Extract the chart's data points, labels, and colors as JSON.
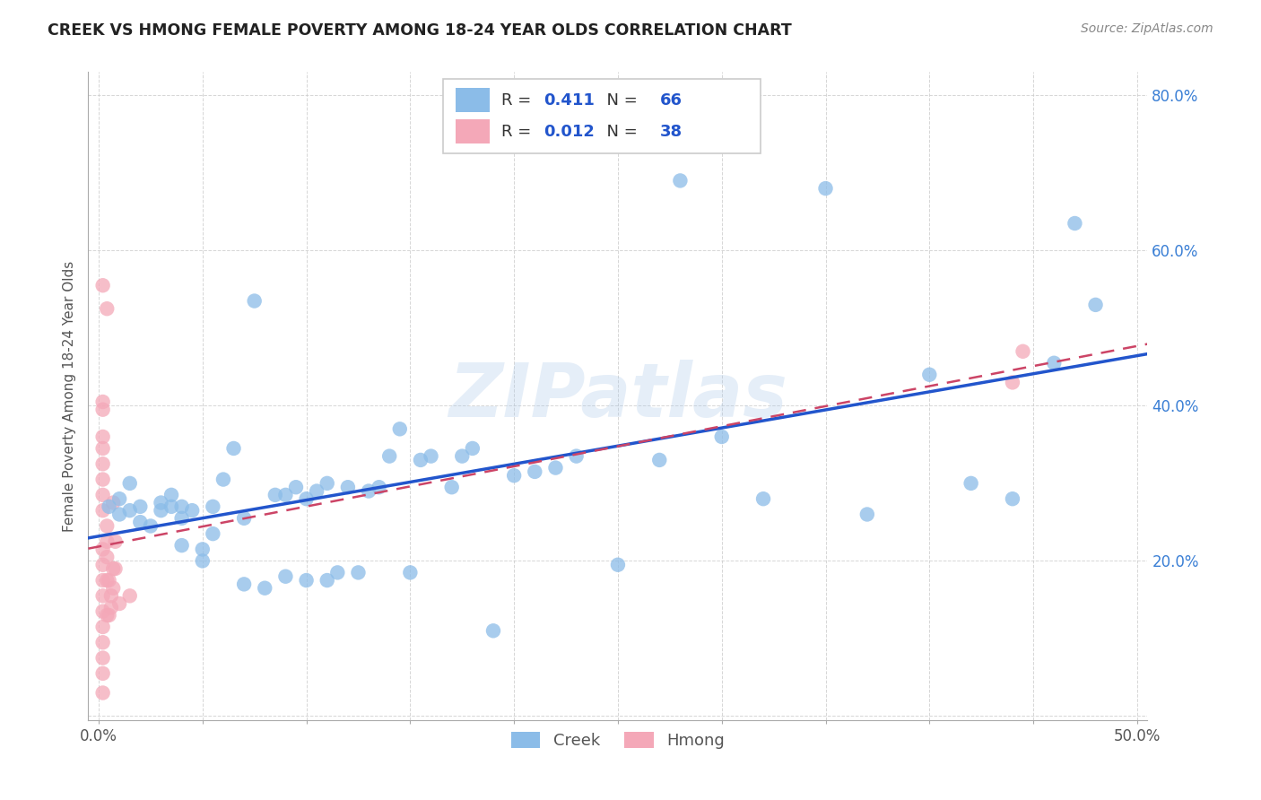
{
  "title": "CREEK VS HMONG FEMALE POVERTY AMONG 18-24 YEAR OLDS CORRELATION CHART",
  "source": "Source: ZipAtlas.com",
  "ylabel": "Female Poverty Among 18-24 Year Olds",
  "xlim": [
    -0.005,
    0.505
  ],
  "ylim": [
    -0.005,
    0.83
  ],
  "xticks": [
    0.0,
    0.05,
    0.1,
    0.15,
    0.2,
    0.25,
    0.3,
    0.35,
    0.4,
    0.45,
    0.5
  ],
  "xtick_labels": [
    "0.0%",
    "",
    "",
    "",
    "",
    "",
    "",
    "",
    "",
    "",
    "50.0%"
  ],
  "yticks": [
    0.0,
    0.2,
    0.4,
    0.6,
    0.8
  ],
  "ytick_labels": [
    "",
    "20.0%",
    "40.0%",
    "60.0%",
    "80.0%"
  ],
  "creek_color": "#8BBCE8",
  "hmong_color": "#F4A8B8",
  "creek_line_color": "#2255CC",
  "hmong_line_color": "#CC4466",
  "creek_R": 0.411,
  "creek_N": 66,
  "hmong_R": 0.012,
  "hmong_N": 38,
  "watermark": "ZIPatlas",
  "creek_x": [
    0.005,
    0.01,
    0.01,
    0.015,
    0.015,
    0.02,
    0.02,
    0.025,
    0.03,
    0.03,
    0.035,
    0.035,
    0.04,
    0.04,
    0.04,
    0.045,
    0.05,
    0.05,
    0.055,
    0.055,
    0.06,
    0.065,
    0.07,
    0.07,
    0.075,
    0.08,
    0.085,
    0.09,
    0.09,
    0.095,
    0.1,
    0.1,
    0.105,
    0.11,
    0.11,
    0.115,
    0.12,
    0.125,
    0.13,
    0.135,
    0.14,
    0.145,
    0.15,
    0.155,
    0.16,
    0.17,
    0.175,
    0.18,
    0.19,
    0.2,
    0.21,
    0.22,
    0.23,
    0.25,
    0.27,
    0.28,
    0.3,
    0.32,
    0.35,
    0.37,
    0.4,
    0.42,
    0.44,
    0.46,
    0.47,
    0.48
  ],
  "creek_y": [
    0.27,
    0.26,
    0.28,
    0.265,
    0.3,
    0.25,
    0.27,
    0.245,
    0.265,
    0.275,
    0.27,
    0.285,
    0.22,
    0.255,
    0.27,
    0.265,
    0.2,
    0.215,
    0.27,
    0.235,
    0.305,
    0.345,
    0.17,
    0.255,
    0.535,
    0.165,
    0.285,
    0.18,
    0.285,
    0.295,
    0.175,
    0.28,
    0.29,
    0.3,
    0.175,
    0.185,
    0.295,
    0.185,
    0.29,
    0.295,
    0.335,
    0.37,
    0.185,
    0.33,
    0.335,
    0.295,
    0.335,
    0.345,
    0.11,
    0.31,
    0.315,
    0.32,
    0.335,
    0.195,
    0.33,
    0.69,
    0.36,
    0.28,
    0.68,
    0.26,
    0.44,
    0.3,
    0.28,
    0.455,
    0.635,
    0.53
  ],
  "hmong_x": [
    0.002,
    0.002,
    0.002,
    0.002,
    0.002,
    0.002,
    0.002,
    0.002,
    0.002,
    0.002,
    0.002,
    0.002,
    0.002,
    0.002,
    0.002,
    0.002,
    0.002,
    0.002,
    0.002,
    0.004,
    0.004,
    0.004,
    0.004,
    0.004,
    0.004,
    0.005,
    0.005,
    0.006,
    0.006,
    0.007,
    0.007,
    0.007,
    0.008,
    0.008,
    0.01,
    0.015,
    0.44,
    0.445
  ],
  "hmong_y": [
    0.03,
    0.055,
    0.075,
    0.095,
    0.115,
    0.135,
    0.155,
    0.175,
    0.195,
    0.215,
    0.265,
    0.285,
    0.305,
    0.325,
    0.345,
    0.36,
    0.395,
    0.405,
    0.555,
    0.13,
    0.175,
    0.205,
    0.225,
    0.245,
    0.525,
    0.13,
    0.175,
    0.14,
    0.155,
    0.275,
    0.165,
    0.19,
    0.19,
    0.225,
    0.145,
    0.155,
    0.43,
    0.47
  ]
}
